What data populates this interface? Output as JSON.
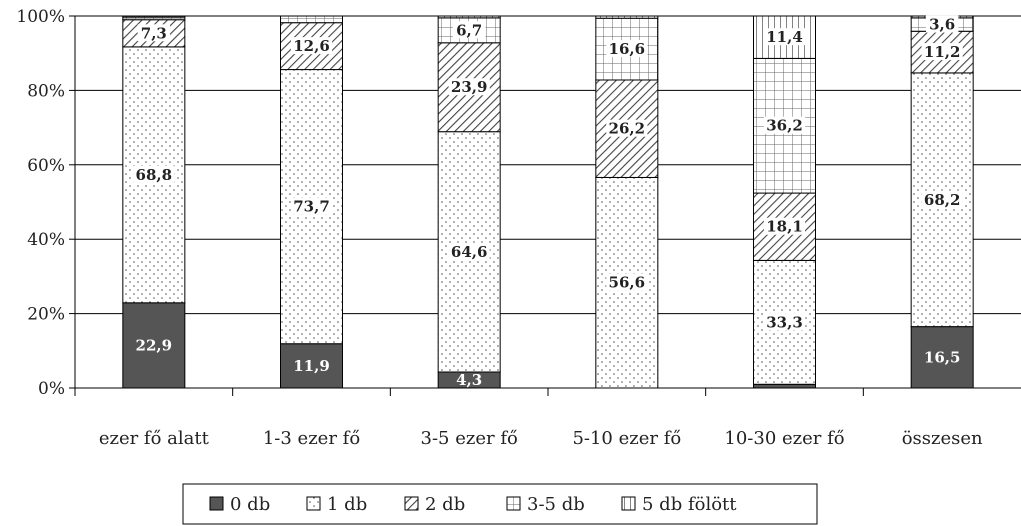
{
  "chart_data": {
    "type": "bar",
    "stacked": true,
    "percent": true,
    "categories": [
      "ezer fő alatt",
      "1-3 ezer fő",
      "3-5 ezer fő",
      "5-10 ezer fő",
      "10-30 ezer fő",
      "összesen"
    ],
    "series": [
      {
        "name": "0 db",
        "values": [
          22.9,
          11.9,
          4.3,
          0.0,
          1.0,
          16.5
        ],
        "labels": [
          "22,9",
          "11,9",
          "4,3",
          "",
          "",
          "16,5"
        ],
        "color": "#555555",
        "pattern": "solid"
      },
      {
        "name": "1 db",
        "values": [
          68.8,
          73.7,
          64.6,
          56.6,
          33.3,
          68.2
        ],
        "labels": [
          "68,8",
          "73,7",
          "64,6",
          "56,6",
          "33,3",
          "68,2"
        ],
        "color": "#ffffff",
        "pattern": "dots"
      },
      {
        "name": "2 db",
        "values": [
          7.3,
          12.6,
          23.9,
          26.2,
          18.1,
          11.2
        ],
        "labels": [
          "7,3",
          "12,6",
          "23,9",
          "26,2",
          "18,1",
          "11,2"
        ],
        "color": "#ffffff",
        "pattern": "diagonal"
      },
      {
        "name": "3-5 db",
        "values": [
          0.7,
          1.8,
          6.7,
          16.6,
          36.2,
          3.6
        ],
        "labels": [
          "",
          "",
          "6,7",
          "16,6",
          "36,2",
          "3,6"
        ],
        "color": "#ffffff",
        "pattern": "grid"
      },
      {
        "name": "5 db fölött",
        "values": [
          0.3,
          0.0,
          0.5,
          0.6,
          11.4,
          0.5
        ],
        "labels": [
          "",
          "",
          "",
          "",
          "11,4",
          ""
        ],
        "color": "#ffffff",
        "pattern": "vertical"
      }
    ],
    "yticks": [
      "0%",
      "20%",
      "40%",
      "60%",
      "80%",
      "100%"
    ],
    "ylim": [
      0,
      100
    ],
    "grid": true,
    "legend": "bottom",
    "title": "",
    "xlabel": "",
    "ylabel": ""
  }
}
